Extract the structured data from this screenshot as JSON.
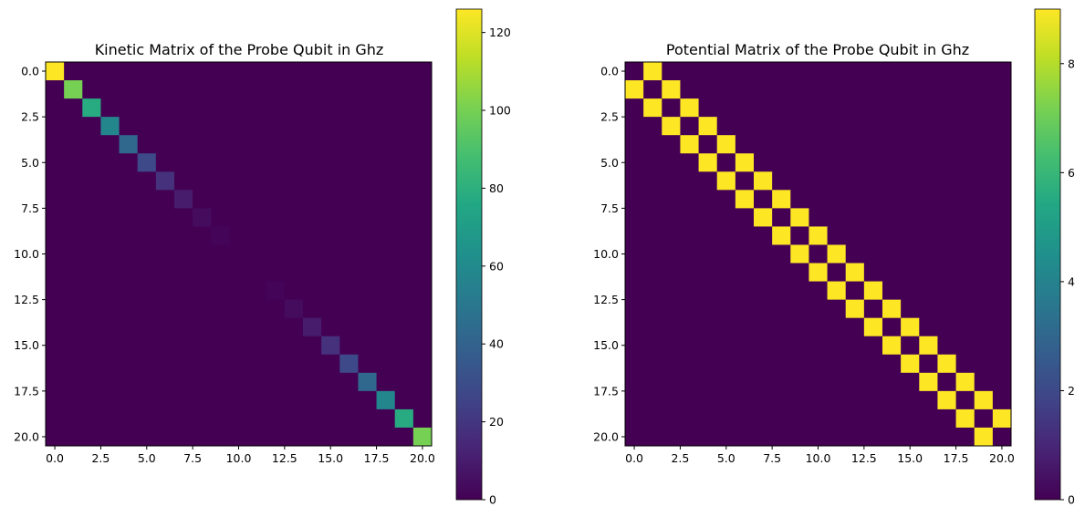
{
  "chart_data": [
    {
      "type": "heatmap",
      "title": "Kinetic Matrix of the Probe Qubit in Ghz",
      "size": 21,
      "diagonal": [
        126,
        100,
        78,
        58,
        42,
        28,
        18,
        10,
        4,
        1,
        0,
        0,
        1,
        4,
        10,
        18,
        28,
        42,
        58,
        78,
        100
      ],
      "off_diagonal": 0,
      "xticks": [
        "0.0",
        "2.5",
        "5.0",
        "7.5",
        "10.0",
        "12.5",
        "15.0",
        "17.5",
        "20.0"
      ],
      "yticks": [
        "0.0",
        "2.5",
        "5.0",
        "7.5",
        "10.0",
        "12.5",
        "15.0",
        "17.5",
        "20.0"
      ],
      "tick_values": [
        0,
        2.5,
        5,
        7.5,
        10,
        12.5,
        15,
        17.5,
        20
      ],
      "colorbar": {
        "min": 0,
        "max": 126,
        "ticks": [
          0,
          20,
          40,
          60,
          80,
          100,
          120
        ],
        "tick_labels": [
          "0",
          "20",
          "40",
          "60",
          "80",
          "100",
          "120"
        ]
      },
      "colormap": "viridis"
    },
    {
      "type": "heatmap",
      "title": "Potential Matrix of the Probe Qubit in Ghz",
      "size": 21,
      "diagonal_value": 0,
      "off_diagonal_value": 9,
      "other_value": 0,
      "xticks": [
        "0.0",
        "2.5",
        "5.0",
        "7.5",
        "10.0",
        "12.5",
        "15.0",
        "17.5",
        "20.0"
      ],
      "yticks": [
        "0.0",
        "2.5",
        "5.0",
        "7.5",
        "10.0",
        "12.5",
        "15.0",
        "17.5",
        "20.0"
      ],
      "tick_values": [
        0,
        2.5,
        5,
        7.5,
        10,
        12.5,
        15,
        17.5,
        20
      ],
      "colorbar": {
        "min": 0,
        "max": 9,
        "ticks": [
          0,
          2,
          4,
          6,
          8
        ],
        "tick_labels": [
          "0",
          "2",
          "4",
          "6",
          "8"
        ]
      },
      "colormap": "viridis"
    }
  ]
}
